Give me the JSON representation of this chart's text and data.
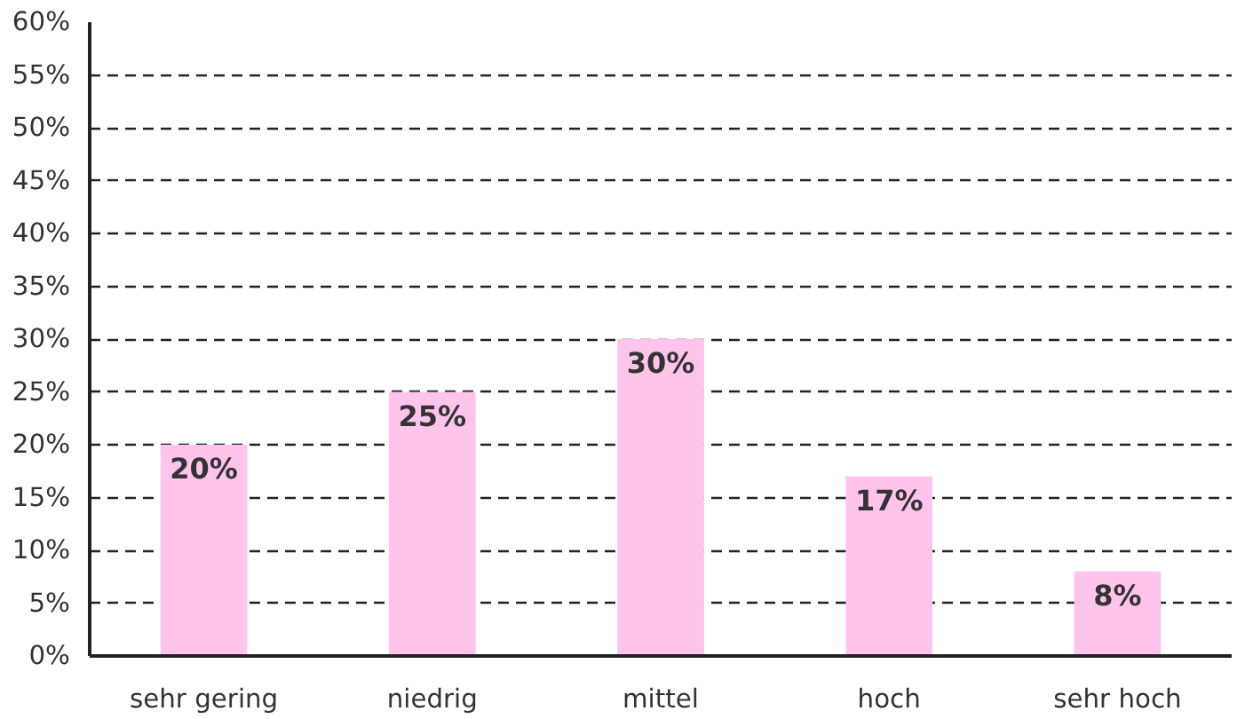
{
  "chart_data": {
    "type": "bar",
    "categories": [
      "sehr gering",
      "niedrig",
      "mittel",
      "hoch",
      "sehr hoch"
    ],
    "values": [
      20,
      25,
      30,
      17,
      8
    ],
    "color": "#ffc4eb",
    "data_labels": true,
    "value_labels": [
      "20%",
      "25%",
      "30%",
      "17%",
      "8%"
    ],
    "ylim": [
      0,
      60
    ],
    "yticks": [
      {
        "value": 0,
        "label": "0%"
      },
      {
        "value": 5,
        "label": "5%"
      },
      {
        "value": 10,
        "label": "10%"
      },
      {
        "value": 15,
        "label": "15%"
      },
      {
        "value": 20,
        "label": "20%"
      },
      {
        "value": 25,
        "label": "25%"
      },
      {
        "value": 30,
        "label": "30%"
      },
      {
        "value": 35,
        "label": "35%"
      },
      {
        "value": 40,
        "label": "40%"
      },
      {
        "value": 45,
        "label": "45%"
      },
      {
        "value": 50,
        "label": "50%"
      },
      {
        "value": 55,
        "label": "55%"
      },
      {
        "value": 60,
        "label": "60%"
      }
    ],
    "grid": "y"
  }
}
